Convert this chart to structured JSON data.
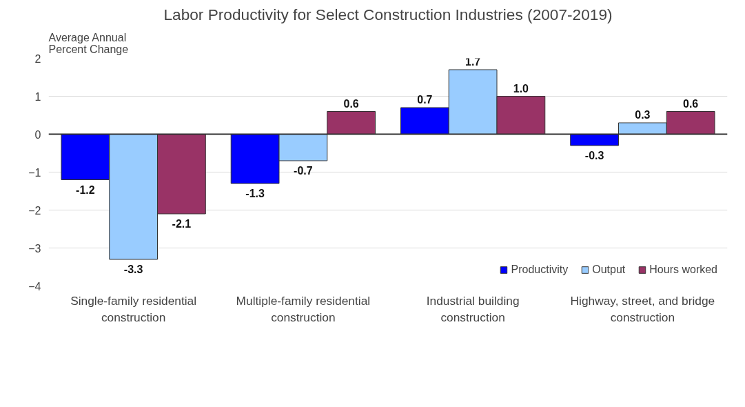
{
  "chart_data": {
    "type": "bar",
    "title": "Labor Productivity for Select Construction Industries (2007-2019)",
    "ylabel": "Average Annual Percent Change",
    "categories": [
      "Single-family residential construction",
      "Multiple-family residential construction",
      "Industrial building construction",
      "Highway, street, and bridge construction"
    ],
    "series": [
      {
        "name": "Productivity",
        "color": "#0000ff",
        "values": [
          -1.2,
          -1.3,
          0.7,
          -0.3
        ],
        "value_labels": [
          "-1.2",
          "-1.3",
          "0.7",
          "-0.3"
        ]
      },
      {
        "name": "Output",
        "color": "#99ccff",
        "values": [
          -3.3,
          -0.7,
          1.7,
          0.3
        ],
        "value_labels": [
          "-3.3",
          "-0.7",
          "1.7",
          "0.3"
        ]
      },
      {
        "name": "Hours worked",
        "color": "#993366",
        "values": [
          -2.1,
          0.6,
          1.0,
          0.6
        ],
        "value_labels": [
          "-2.1",
          "0.6",
          "1.0",
          "0.6"
        ]
      }
    ],
    "ylim": [
      -4,
      2
    ],
    "yticks": [
      -4,
      -3,
      -2,
      -1,
      0,
      1,
      2
    ],
    "grid": "y",
    "legend": "bottom right"
  }
}
